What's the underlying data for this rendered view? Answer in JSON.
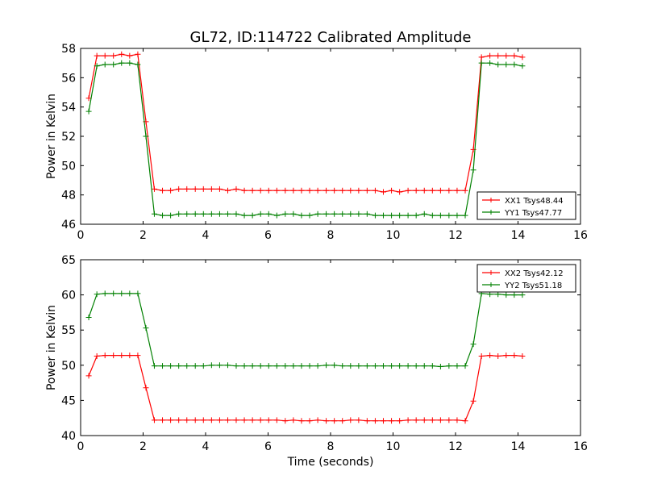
{
  "title": "GL72, ID:114722 Calibrated Amplitude",
  "colors": {
    "red": "#ff0000",
    "green": "#008000"
  },
  "chart_data": [
    {
      "type": "line",
      "ylabel": "Power in Kelvin",
      "xlim": [
        0,
        16
      ],
      "ylim": [
        46,
        58
      ],
      "xticks": [
        0,
        2,
        4,
        6,
        8,
        10,
        12,
        14,
        16
      ],
      "yticks": [
        46,
        48,
        50,
        52,
        54,
        56,
        58
      ],
      "legend_position": "lower-right",
      "x": [
        0.26,
        0.52,
        0.78,
        1.05,
        1.31,
        1.57,
        1.83,
        2.09,
        2.36,
        2.62,
        2.88,
        3.14,
        3.4,
        3.67,
        3.93,
        4.19,
        4.45,
        4.71,
        4.98,
        5.24,
        5.5,
        5.76,
        6.02,
        6.28,
        6.55,
        6.81,
        7.07,
        7.33,
        7.59,
        7.86,
        8.12,
        8.38,
        8.64,
        8.9,
        9.17,
        9.43,
        9.69,
        9.95,
        10.21,
        10.48,
        10.74,
        11.0,
        11.26,
        11.52,
        11.79,
        12.05,
        12.31,
        12.57,
        12.83,
        13.1,
        13.36,
        13.62,
        13.88,
        14.14
      ],
      "series": [
        {
          "name": "XX1 Tsys48.44",
          "color": "#ff0000",
          "values": [
            54.6,
            57.5,
            57.5,
            57.5,
            57.6,
            57.5,
            57.6,
            53.0,
            48.4,
            48.3,
            48.3,
            48.4,
            48.4,
            48.4,
            48.4,
            48.4,
            48.4,
            48.3,
            48.4,
            48.3,
            48.3,
            48.3,
            48.3,
            48.3,
            48.3,
            48.3,
            48.3,
            48.3,
            48.3,
            48.3,
            48.3,
            48.3,
            48.3,
            48.3,
            48.3,
            48.3,
            48.2,
            48.3,
            48.2,
            48.3,
            48.3,
            48.3,
            48.3,
            48.3,
            48.3,
            48.3,
            48.3,
            51.1,
            57.4,
            57.5,
            57.5,
            57.5,
            57.5,
            57.4
          ]
        },
        {
          "name": "YY1 Tsys47.77",
          "color": "#008000",
          "values": [
            53.7,
            56.8,
            56.9,
            56.9,
            57.0,
            57.0,
            56.9,
            52.0,
            46.7,
            46.6,
            46.6,
            46.7,
            46.7,
            46.7,
            46.7,
            46.7,
            46.7,
            46.7,
            46.7,
            46.6,
            46.6,
            46.7,
            46.7,
            46.6,
            46.7,
            46.7,
            46.6,
            46.6,
            46.7,
            46.7,
            46.7,
            46.7,
            46.7,
            46.7,
            46.7,
            46.6,
            46.6,
            46.6,
            46.6,
            46.6,
            46.6,
            46.7,
            46.6,
            46.6,
            46.6,
            46.6,
            46.6,
            49.7,
            57.0,
            57.0,
            56.9,
            56.9,
            56.9,
            56.8
          ]
        }
      ]
    },
    {
      "type": "line",
      "xlabel": "Time (seconds)",
      "ylabel": "Power in Kelvin",
      "xlim": [
        0,
        16
      ],
      "ylim": [
        40,
        65
      ],
      "xticks": [
        0,
        2,
        4,
        6,
        8,
        10,
        12,
        14,
        16
      ],
      "yticks": [
        40,
        45,
        50,
        55,
        60,
        65
      ],
      "legend_position": "upper-right",
      "x": [
        0.26,
        0.52,
        0.78,
        1.05,
        1.31,
        1.57,
        1.83,
        2.09,
        2.36,
        2.62,
        2.88,
        3.14,
        3.4,
        3.67,
        3.93,
        4.19,
        4.45,
        4.71,
        4.98,
        5.24,
        5.5,
        5.76,
        6.02,
        6.28,
        6.55,
        6.81,
        7.07,
        7.33,
        7.59,
        7.86,
        8.12,
        8.38,
        8.64,
        8.9,
        9.17,
        9.43,
        9.69,
        9.95,
        10.21,
        10.48,
        10.74,
        11.0,
        11.26,
        11.52,
        11.79,
        12.05,
        12.31,
        12.57,
        12.83,
        13.1,
        13.36,
        13.62,
        13.88,
        14.14
      ],
      "series": [
        {
          "name": "XX2 Tsys42.12",
          "color": "#ff0000",
          "values": [
            48.5,
            51.3,
            51.4,
            51.4,
            51.4,
            51.4,
            51.4,
            46.8,
            42.2,
            42.2,
            42.2,
            42.2,
            42.2,
            42.2,
            42.2,
            42.2,
            42.2,
            42.2,
            42.2,
            42.2,
            42.2,
            42.2,
            42.2,
            42.2,
            42.1,
            42.2,
            42.1,
            42.1,
            42.2,
            42.1,
            42.1,
            42.1,
            42.2,
            42.2,
            42.1,
            42.1,
            42.1,
            42.1,
            42.1,
            42.2,
            42.2,
            42.2,
            42.2,
            42.2,
            42.2,
            42.2,
            42.1,
            44.9,
            51.3,
            51.4,
            51.3,
            51.4,
            51.4,
            51.3
          ]
        },
        {
          "name": "YY2 Tsys51.18",
          "color": "#008000",
          "values": [
            56.8,
            60.1,
            60.2,
            60.2,
            60.2,
            60.2,
            60.2,
            55.3,
            49.9,
            49.9,
            49.9,
            49.9,
            49.9,
            49.9,
            49.9,
            50.0,
            50.0,
            50.0,
            49.9,
            49.9,
            49.9,
            49.9,
            49.9,
            49.9,
            49.9,
            49.9,
            49.9,
            49.9,
            49.9,
            50.0,
            50.0,
            49.9,
            49.9,
            49.9,
            49.9,
            49.9,
            49.9,
            49.9,
            49.9,
            49.9,
            49.9,
            49.9,
            49.9,
            49.8,
            49.9,
            49.9,
            49.9,
            53.0,
            60.2,
            60.1,
            60.1,
            60.0,
            60.0,
            60.0
          ]
        }
      ]
    }
  ]
}
